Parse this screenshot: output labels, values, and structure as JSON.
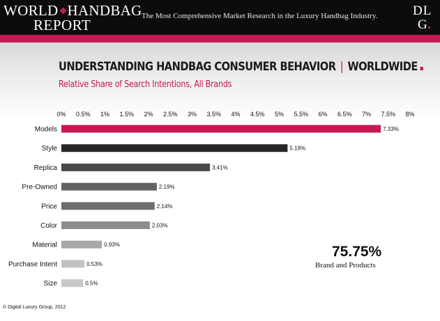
{
  "header": {
    "logo_line1_a": "WORLD",
    "logo_line1_b": "HANDBAG",
    "logo_line2": "REPORT",
    "tagline": "The Most Comprehensive Market Research in the Luxury Handbag Industry.",
    "dlg_top": "DL",
    "dlg_bottom": "G",
    "colors": {
      "header_bg": "#0c0c0c",
      "accent": "#c51a52"
    }
  },
  "chart_data": {
    "type": "bar",
    "orientation": "horizontal",
    "title_main": "UNDERSTANDING HANDBAG CONSUMER BEHAVIOR",
    "title_separator": "|",
    "title_region": "WORLDWIDE",
    "subtitle": "Relative Share of Search Intentions, All Brands",
    "categories": [
      "Models",
      "Style",
      "Replica",
      "Pre-Owned",
      "Price",
      "Color",
      "Material",
      "Purchase Intent",
      "Size"
    ],
    "values": [
      7.33,
      5.19,
      3.41,
      2.19,
      2.14,
      2.03,
      0.93,
      0.53,
      0.5
    ],
    "value_labels": [
      "7.33%",
      "5.19%",
      "3.41%",
      "2.19%",
      "2.14%",
      "2.03%",
      "0.93%",
      "0.53%",
      "0.5%"
    ],
    "bar_colors": [
      "#c51a52",
      "#262626",
      "#4a4a4a",
      "#626262",
      "#6e6e6e",
      "#8d8d8d",
      "#a8a8a8",
      "#c2c2c2",
      "#c8c8c8"
    ],
    "xlim": [
      0,
      8
    ],
    "xticks": [
      0,
      0.5,
      1,
      1.5,
      2,
      2.5,
      3,
      3.5,
      4,
      4.5,
      5,
      5.5,
      6,
      6.5,
      7,
      7.5,
      8
    ],
    "xtick_labels": [
      "0%",
      "0.5%",
      "1%",
      "1.5%",
      "2%",
      "2.5%",
      "3%",
      "3.5%",
      "4%",
      "4.5%",
      "5%",
      "5.5%",
      "6%",
      "6.5%",
      "7%",
      "7.5%",
      "8%"
    ],
    "xaxis_position": "top",
    "grid": false,
    "legend": false
  },
  "summary": {
    "total_value": "75.75%",
    "total_label": "Brand and Products"
  },
  "footer": {
    "copyright": "© Digital Luxury Group, 2012"
  }
}
